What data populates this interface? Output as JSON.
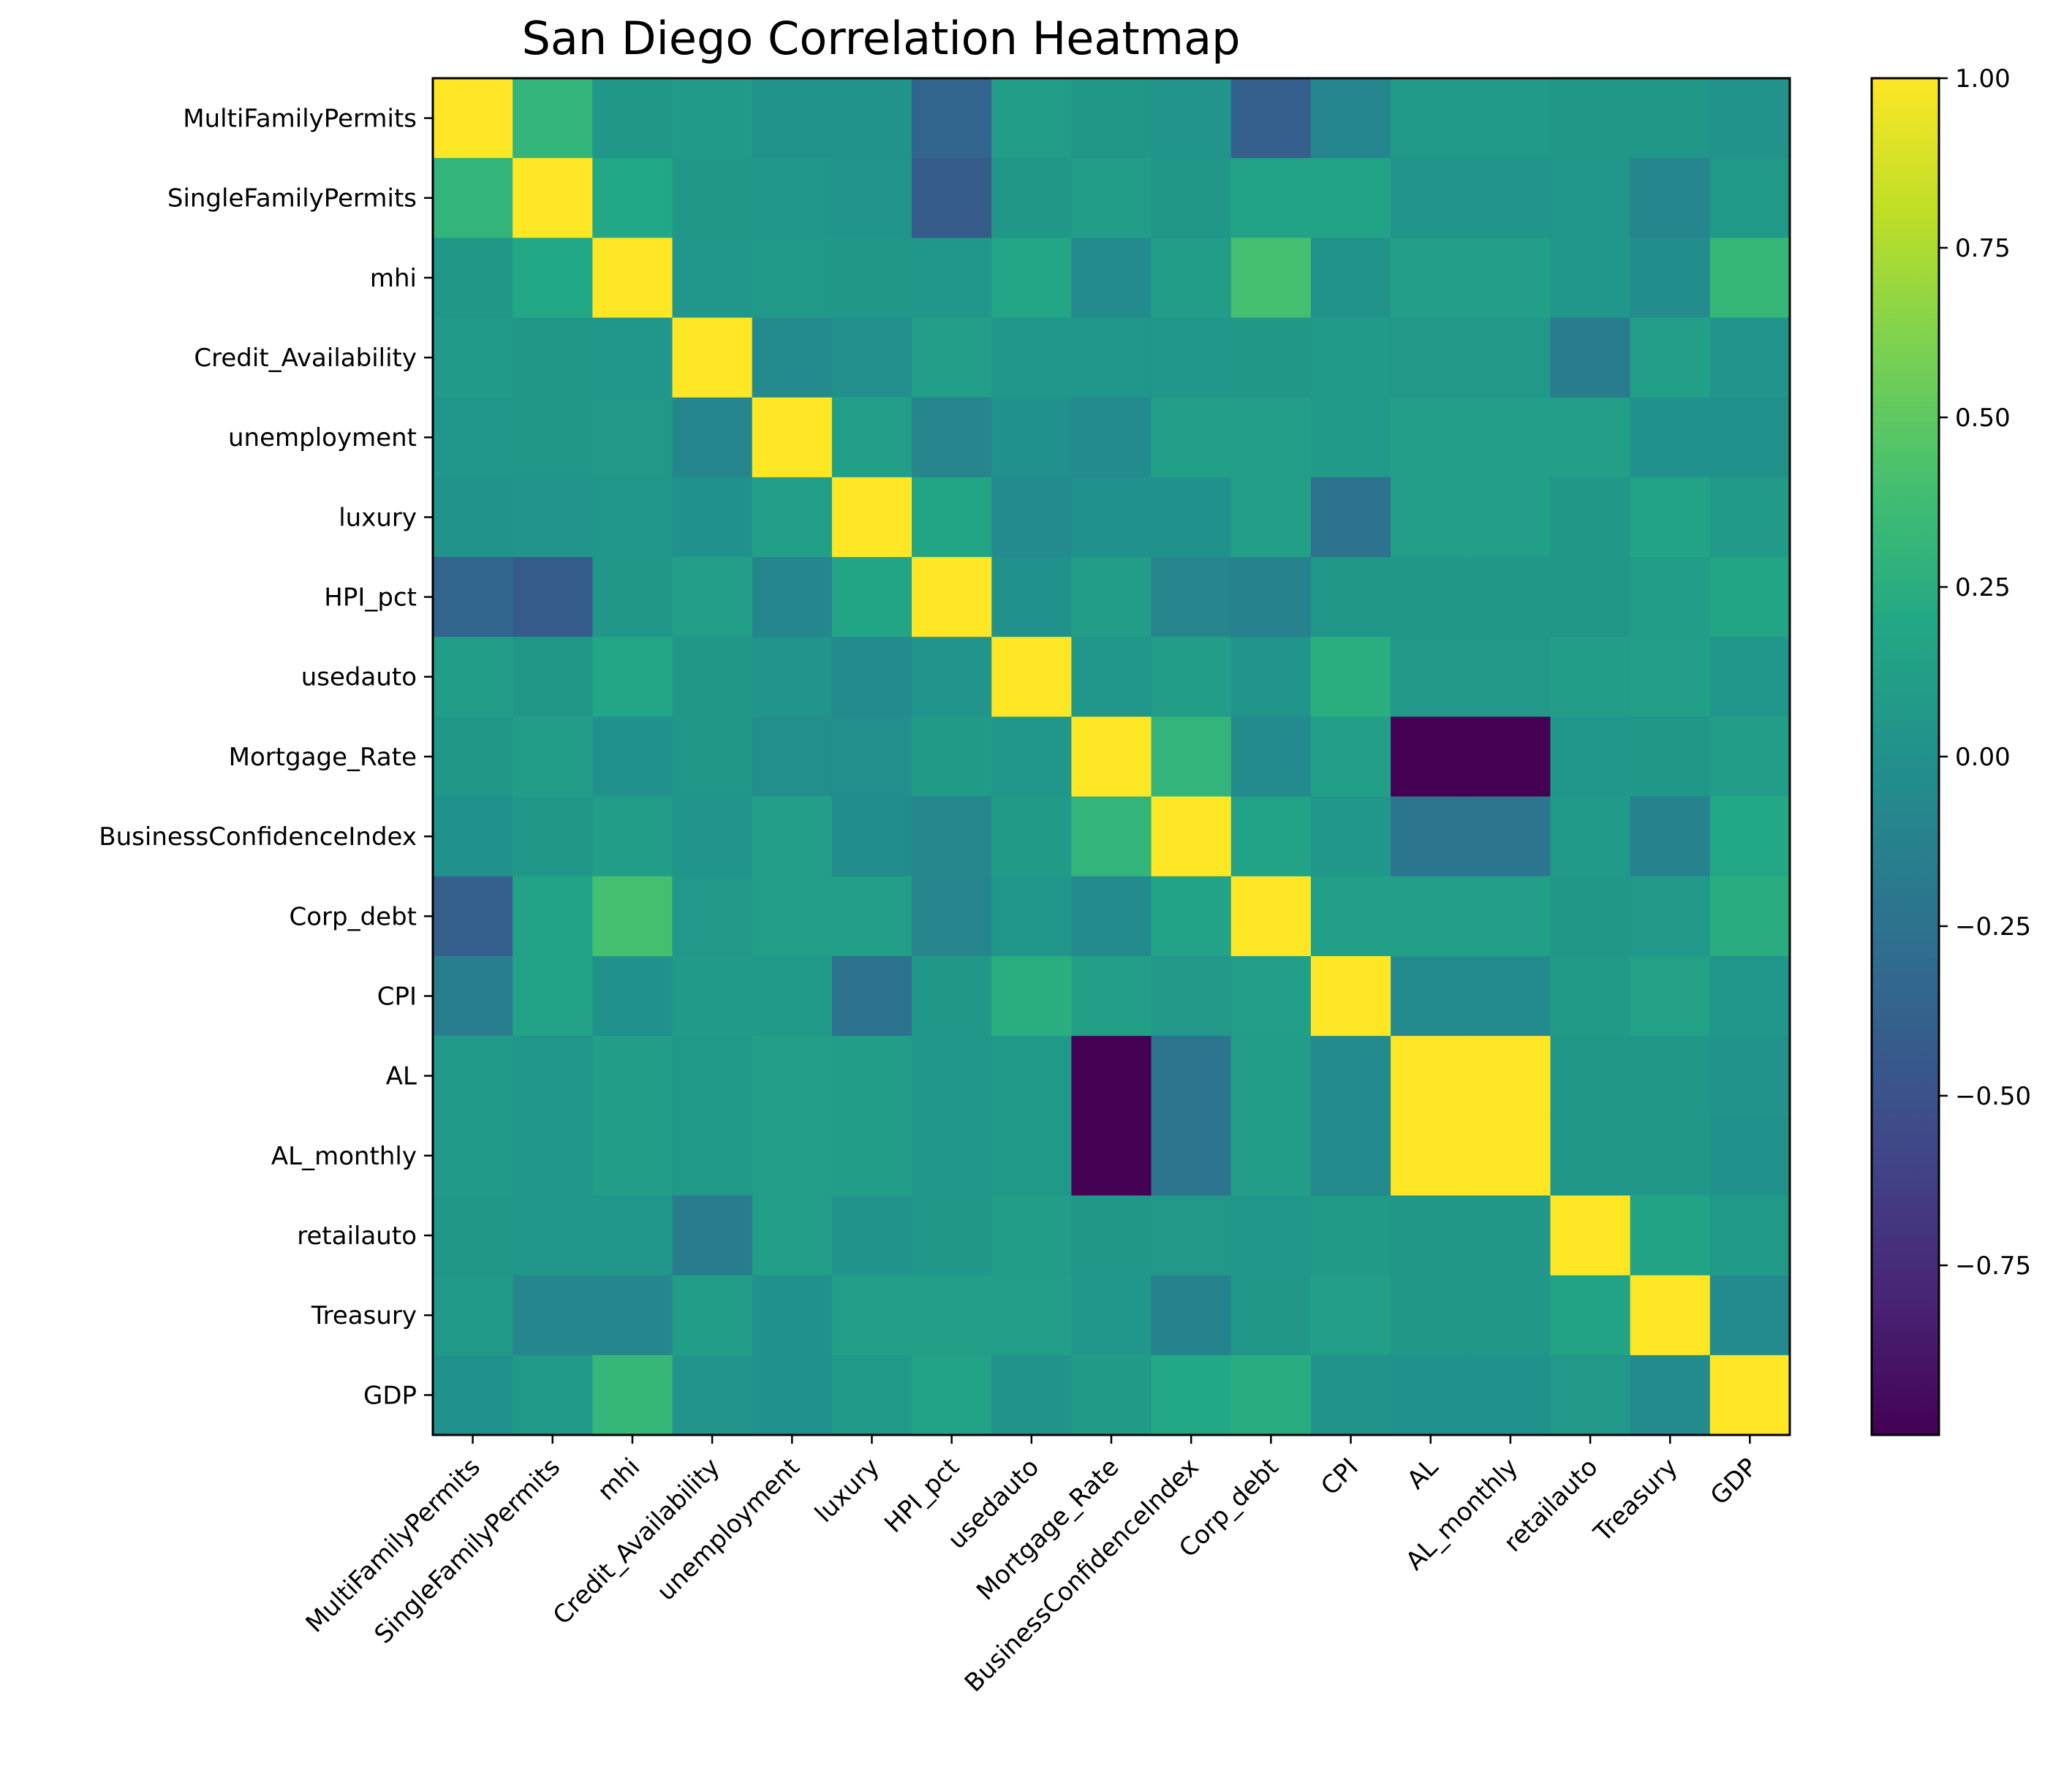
{
  "chart_data": {
    "type": "heatmap",
    "title": "San Diego Correlation Heatmap",
    "xlabel": "",
    "ylabel": "",
    "variables": [
      "MultiFamilyPermits",
      "SingleFamilyPermits",
      "mhi",
      "Credit_Availability",
      "unemployment",
      "luxury",
      "HPI_pct",
      "usedauto",
      "Mortgage_Rate",
      "BusinessConfidenceIndex",
      "Corp_debt",
      "CPI",
      "AL",
      "AL_monthly",
      "retailauto",
      "Treasury",
      "GDP"
    ],
    "colormap": "viridis",
    "vmin": -1.0,
    "vmax": 1.0,
    "colorbar_ticks": [
      1.0,
      0.75,
      0.5,
      0.25,
      0.0,
      -0.25,
      -0.5,
      -0.75
    ],
    "colorbar_tick_labels": [
      "1.00",
      "0.75",
      "0.50",
      "0.25",
      "0.00",
      "−0.25",
      "−0.50",
      "−0.75"
    ],
    "values": [
      [
        1.0,
        0.3,
        0.05,
        0.08,
        0.02,
        0.02,
        -0.35,
        0.1,
        0.05,
        0.03,
        -0.4,
        -0.08,
        0.08,
        0.08,
        0.05,
        0.05,
        0.02
      ],
      [
        0.3,
        1.0,
        0.2,
        0.05,
        0.04,
        0.03,
        -0.42,
        0.05,
        0.1,
        0.05,
        0.15,
        0.15,
        0.03,
        0.03,
        0.04,
        -0.08,
        0.07
      ],
      [
        0.05,
        0.2,
        1.0,
        0.04,
        0.07,
        0.05,
        0.04,
        0.18,
        -0.05,
        0.1,
        0.4,
        0.02,
        0.12,
        0.12,
        0.04,
        -0.03,
        0.32
      ],
      [
        0.08,
        0.05,
        0.04,
        1.0,
        -0.05,
        -0.02,
        0.12,
        0.04,
        0.04,
        0.04,
        0.05,
        0.08,
        0.06,
        0.06,
        -0.17,
        0.12,
        0.03
      ],
      [
        0.04,
        0.05,
        0.06,
        -0.08,
        1.0,
        0.12,
        -0.1,
        0.0,
        -0.05,
        0.12,
        0.13,
        0.08,
        0.13,
        0.13,
        0.12,
        0.0,
        0.0
      ],
      [
        0.02,
        0.03,
        0.04,
        0.0,
        0.12,
        1.0,
        0.17,
        -0.05,
        0.0,
        0.0,
        0.12,
        -0.25,
        0.12,
        0.12,
        0.05,
        0.15,
        0.08
      ],
      [
        -0.35,
        -0.42,
        0.05,
        0.12,
        -0.08,
        0.17,
        1.0,
        0.0,
        0.1,
        -0.1,
        -0.12,
        0.05,
        0.05,
        0.05,
        0.05,
        0.1,
        0.17
      ],
      [
        0.1,
        0.05,
        0.18,
        0.05,
        0.03,
        -0.05,
        0.03,
        1.0,
        0.04,
        0.1,
        0.03,
        0.25,
        0.06,
        0.06,
        0.1,
        0.12,
        0.04
      ],
      [
        0.05,
        0.1,
        0.0,
        0.05,
        -0.02,
        -0.02,
        0.09,
        0.04,
        1.0,
        0.3,
        -0.05,
        0.13,
        -1.0,
        -1.0,
        0.04,
        0.05,
        0.1
      ],
      [
        0.0,
        0.05,
        0.1,
        0.03,
        0.12,
        -0.03,
        -0.07,
        0.09,
        0.3,
        1.0,
        0.15,
        0.04,
        -0.22,
        -0.22,
        0.08,
        -0.12,
        0.2
      ],
      [
        -0.4,
        0.15,
        0.4,
        0.06,
        0.12,
        0.12,
        -0.1,
        0.04,
        -0.05,
        0.15,
        1.0,
        0.12,
        0.13,
        0.13,
        0.05,
        0.06,
        0.24
      ],
      [
        -0.15,
        0.15,
        0.0,
        0.08,
        0.08,
        -0.25,
        0.05,
        0.25,
        0.13,
        0.06,
        0.12,
        1.0,
        -0.05,
        -0.05,
        0.09,
        0.14,
        0.04
      ],
      [
        0.08,
        0.04,
        0.11,
        0.07,
        0.12,
        0.11,
        0.04,
        0.07,
        -1.0,
        -0.22,
        0.11,
        -0.05,
        1.0,
        1.0,
        0.05,
        0.05,
        0.02
      ],
      [
        0.08,
        0.04,
        0.11,
        0.07,
        0.12,
        0.11,
        0.04,
        0.07,
        -1.0,
        -0.22,
        0.11,
        -0.05,
        1.0,
        1.0,
        0.05,
        0.05,
        0.0
      ],
      [
        0.05,
        0.04,
        0.04,
        -0.17,
        0.12,
        0.02,
        0.05,
        0.11,
        0.05,
        0.06,
        0.04,
        0.09,
        0.05,
        0.05,
        1.0,
        0.16,
        0.07
      ],
      [
        0.07,
        -0.08,
        -0.08,
        0.11,
        0.0,
        0.12,
        0.12,
        0.12,
        0.04,
        -0.12,
        0.05,
        0.13,
        0.05,
        0.05,
        0.16,
        1.0,
        -0.05
      ],
      [
        0.0,
        0.07,
        0.32,
        0.03,
        0.0,
        0.07,
        0.15,
        0.02,
        0.09,
        0.2,
        0.24,
        0.02,
        0.0,
        0.0,
        0.06,
        -0.05,
        1.0
      ]
    ]
  }
}
